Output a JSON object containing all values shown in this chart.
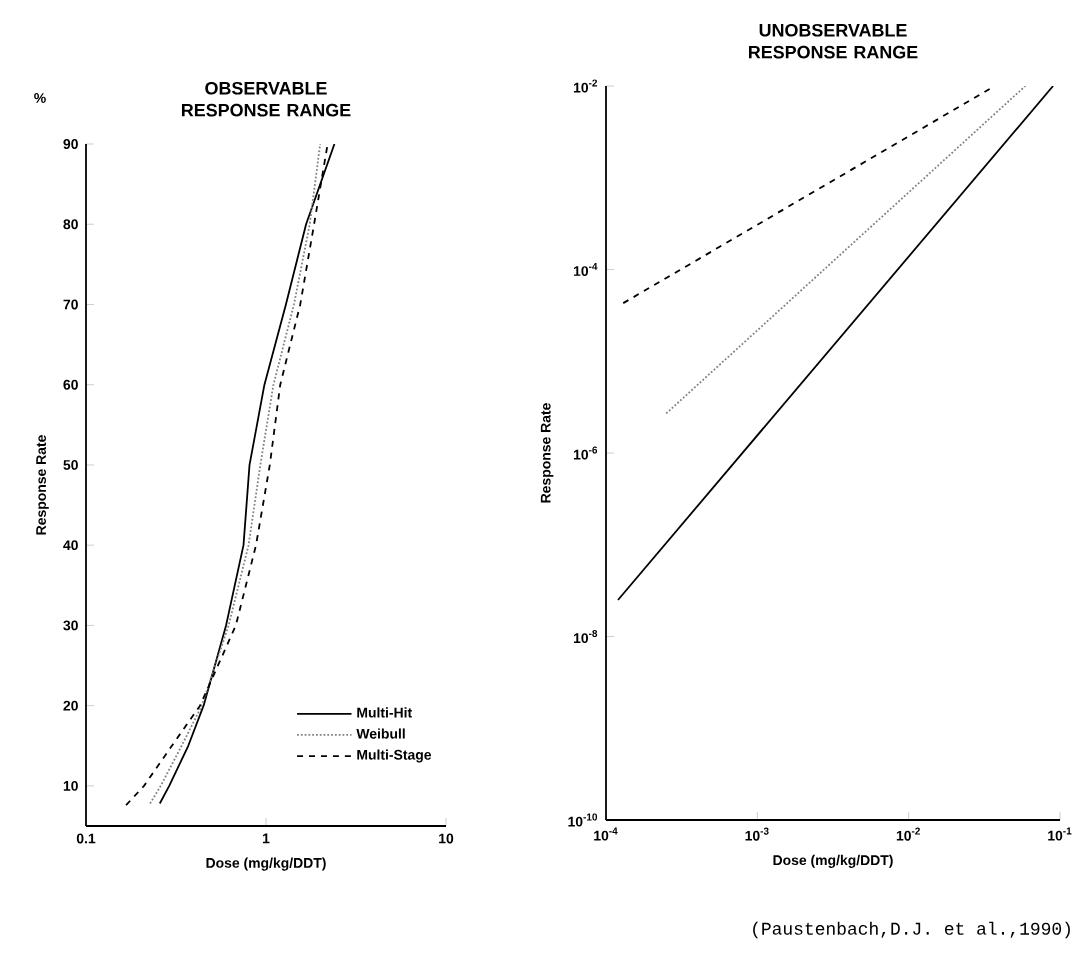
{
  "chart_data": [
    {
      "type": "line",
      "title": "OBSERVABLE RESPONSE RANGE",
      "xlabel": "Dose (mg/kg/DDT)",
      "ylabel": "Response Rate",
      "annotations": [
        "%"
      ],
      "log": "x",
      "xlim": [
        0.1,
        10
      ],
      "ylim": [
        5,
        90
      ],
      "xticks": [
        0.1,
        1,
        10
      ],
      "yticks": [
        10,
        20,
        30,
        40,
        50,
        60,
        70,
        80,
        90
      ],
      "legend": "bottom right",
      "series": [
        {
          "name": "Multi-Hit",
          "color": "#000000",
          "line_style": "solid",
          "x": [
            0.257,
            0.29,
            0.37,
            0.45,
            0.6,
            0.75,
            0.81,
            0.98,
            1.29,
            1.67,
            2.4
          ],
          "values": [
            7.8,
            10,
            15,
            20,
            30,
            40,
            50,
            60,
            70,
            80,
            90
          ]
        },
        {
          "name": "Weibull",
          "color": "#808080",
          "line_style": "dotted",
          "x": [
            0.227,
            0.26,
            0.34,
            0.44,
            0.62,
            0.8,
            0.93,
            1.1,
            1.43,
            1.75,
            2.0
          ],
          "values": [
            7.8,
            10,
            15,
            20,
            30,
            40,
            50,
            60,
            70,
            80,
            90
          ]
        },
        {
          "name": "Multi-Stage",
          "color": "#000000",
          "line_style": "dashed",
          "x": [
            0.167,
            0.21,
            0.3,
            0.43,
            0.68,
            0.88,
            1.05,
            1.2,
            1.55,
            1.85,
            2.2
          ],
          "values": [
            7.6,
            10,
            15,
            20,
            30,
            40,
            50,
            60,
            70,
            80,
            90
          ]
        }
      ]
    },
    {
      "type": "line",
      "title": "UNOBSERVABLE RESPONSE RANGE",
      "xlabel": "Dose (mg/kg/DDT)",
      "ylabel": "Response Rate",
      "annotations": [
        "(Paustenbach,D.J. et al.,1990)"
      ],
      "log": "xy",
      "xlim": [
        0.0001,
        0.1
      ],
      "ylim": [
        1e-10,
        0.01
      ],
      "xticks": [
        {
          "value": 0.0001,
          "label": "10$^{-4}$"
        },
        {
          "value": 0.001,
          "label": "10$^{-3}$"
        },
        {
          "value": 0.01,
          "label": "10$^{-2}$"
        },
        {
          "value": 0.1,
          "label": "10$^{-1}$"
        }
      ],
      "yticks": [
        {
          "value": 1e-10,
          "label": "10$^{-10}$"
        },
        {
          "value": 1e-08,
          "label": "10$^{-8}$"
        },
        {
          "value": 1e-06,
          "label": "10$^{-6}$"
        },
        {
          "value": 0.0001,
          "label": "10$^{-4}$"
        },
        {
          "value": 0.01,
          "label": "10$^{-2}$"
        }
      ],
      "series": [
        {
          "color": "#000000",
          "line_style": "solid",
          "x": [
            0.00012,
            0.09
          ],
          "values": [
            2.5e-08,
            0.01
          ]
        },
        {
          "color": "#808080",
          "line_style": "dotted",
          "x": [
            0.00025,
            0.059
          ],
          "values": [
            2.7e-06,
            0.01
          ]
        },
        {
          "color": "#000000",
          "line_style": "dashed",
          "x": [
            0.00013,
            0.037
          ],
          "values": [
            4.3e-05,
            0.01
          ]
        }
      ]
    }
  ]
}
